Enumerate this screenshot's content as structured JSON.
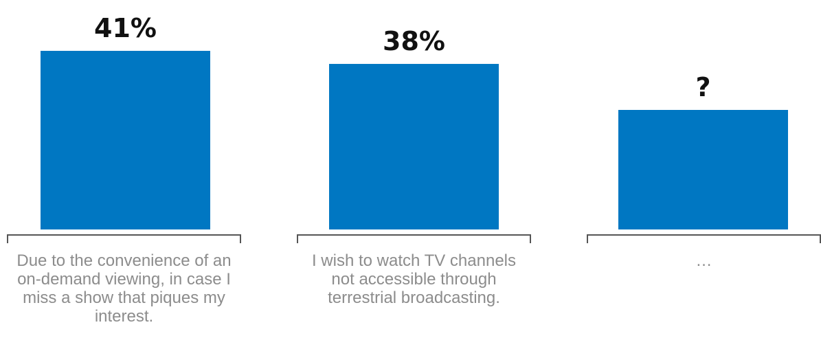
{
  "chart_data": {
    "type": "bar",
    "categories": [
      "Due to the convenience of an on-demand viewing, in case I miss a show that piques my interest.",
      "I wish to watch TV channels not accessible through terrestrial broadcasting.",
      "…"
    ],
    "values": [
      41,
      38,
      null
    ],
    "value_labels": [
      "41%",
      "38%",
      "?"
    ],
    "bar_color": "#0077C2",
    "grid": false,
    "legend": "none"
  }
}
